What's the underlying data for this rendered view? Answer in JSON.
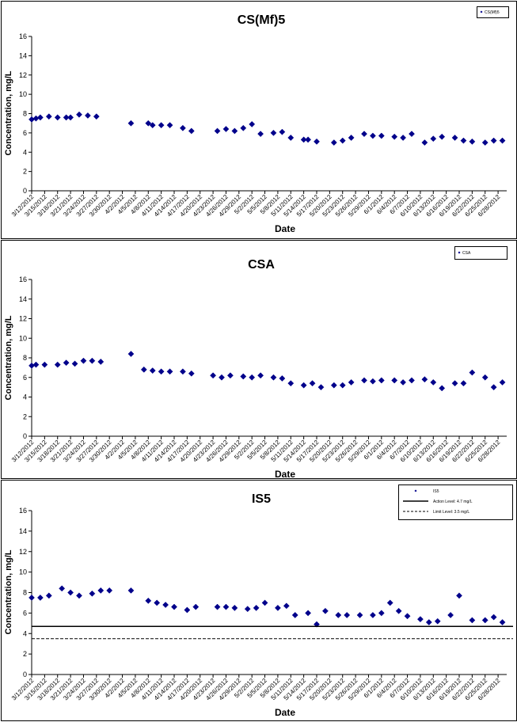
{
  "chart_data": [
    {
      "type": "scatter",
      "title": "CS(Mf)5",
      "xlabel": "Date",
      "ylabel": "Concentration, mg/L",
      "ylim": [
        0,
        16
      ],
      "yticks": [
        0,
        2,
        4,
        6,
        8,
        10,
        12,
        14,
        16
      ],
      "xlim": [
        "3/12/2012",
        "6/30/2012"
      ],
      "xtick_labels": [
        "3/12/2012",
        "3/15/2012",
        "3/18/2012",
        "3/21/2012",
        "3/24/2012",
        "3/27/2012",
        "3/30/2012",
        "4/2/2012",
        "4/5/2012",
        "4/8/2012",
        "4/11/2012",
        "4/14/2012",
        "4/17/2012",
        "4/20/2012",
        "4/23/2012",
        "4/26/2012",
        "4/29/2012",
        "5/2/2012",
        "5/5/2012",
        "5/8/2012",
        "5/11/2012",
        "5/14/2012",
        "5/17/2012",
        "5/20/2012",
        "5/23/2012",
        "5/26/2012",
        "5/29/2012",
        "6/1/2012",
        "6/4/2012",
        "6/7/2012",
        "6/10/2012",
        "6/13/2012",
        "6/16/2012",
        "6/19/2012",
        "6/22/2012",
        "6/25/2012",
        "6/28/2012"
      ],
      "legend": {
        "position": "top-right",
        "entries": [
          "CS(Mf)5"
        ]
      },
      "color": "#00008B",
      "series": [
        {
          "marker": "diamond",
          "x": [
            "3/12/2012",
            "3/13/2012",
            "3/14/2012",
            "3/16/2012",
            "3/18/2012",
            "3/20/2012",
            "3/21/2012",
            "3/23/2012",
            "3/25/2012",
            "3/27/2012",
            "4/4/2012",
            "4/8/2012",
            "4/9/2012",
            "4/11/2012",
            "4/13/2012",
            "4/16/2012",
            "4/18/2012",
            "4/24/2012",
            "4/26/2012",
            "4/28/2012",
            "4/30/2012",
            "5/2/2012",
            "5/4/2012",
            "5/7/2012",
            "5/9/2012",
            "5/11/2012",
            "5/14/2012",
            "5/15/2012",
            "5/17/2012",
            "5/21/2012",
            "5/23/2012",
            "5/25/2012",
            "5/28/2012",
            "5/30/2012",
            "6/1/2012",
            "6/4/2012",
            "6/6/2012",
            "6/8/2012",
            "6/11/2012",
            "6/13/2012",
            "6/15/2012",
            "6/18/2012",
            "6/20/2012",
            "6/22/2012",
            "6/25/2012",
            "6/27/2012",
            "6/29/2012"
          ],
          "y": [
            7.4,
            7.5,
            7.6,
            7.7,
            7.6,
            7.6,
            7.6,
            7.9,
            7.8,
            7.7,
            7.0,
            7.0,
            6.8,
            6.8,
            6.8,
            6.5,
            6.2,
            6.2,
            6.4,
            6.2,
            6.5,
            6.9,
            5.9,
            6.0,
            6.1,
            5.5,
            5.3,
            5.3,
            5.1,
            5.0,
            5.2,
            5.5,
            5.9,
            5.7,
            5.7,
            5.6,
            5.5,
            5.9,
            5.0,
            5.4,
            5.6,
            5.5,
            5.2,
            5.1,
            5.0,
            5.2,
            5.2
          ]
        }
      ]
    },
    {
      "type": "scatter",
      "title": "CSA",
      "xlabel": "Date",
      "ylabel": "Concentration, mg/L",
      "ylim": [
        0,
        16
      ],
      "yticks": [
        0,
        2,
        4,
        6,
        8,
        10,
        12,
        14,
        16
      ],
      "xlim": [
        "3/12/2012",
        "6/30/2012"
      ],
      "xtick_labels": [
        "3/12/2012",
        "3/15/2012",
        "3/18/2012",
        "3/21/2012",
        "3/24/2012",
        "3/27/2012",
        "3/30/2012",
        "4/2/2012",
        "4/5/2012",
        "4/8/2012",
        "4/11/2012",
        "4/14/2012",
        "4/17/2012",
        "4/20/2012",
        "4/23/2012",
        "4/26/2012",
        "4/29/2012",
        "5/2/2012",
        "5/5/2012",
        "5/8/2012",
        "5/11/2012",
        "5/14/2012",
        "5/17/2012",
        "5/20/2012",
        "5/23/2012",
        "5/26/2012",
        "5/29/2012",
        "6/1/2012",
        "6/4/2012",
        "6/7/2012",
        "6/10/2012",
        "6/13/2012",
        "6/16/2012",
        "6/19/2012",
        "6/22/2012",
        "6/25/2012",
        "6/28/2012"
      ],
      "legend": {
        "position": "top-right",
        "entries": [
          "CSA"
        ]
      },
      "color": "#00008B",
      "series": [
        {
          "marker": "diamond",
          "x": [
            "3/12/2012",
            "3/13/2012",
            "3/15/2012",
            "3/18/2012",
            "3/20/2012",
            "3/22/2012",
            "3/24/2012",
            "3/26/2012",
            "3/28/2012",
            "4/4/2012",
            "4/7/2012",
            "4/9/2012",
            "4/11/2012",
            "4/13/2012",
            "4/16/2012",
            "4/18/2012",
            "4/23/2012",
            "4/25/2012",
            "4/27/2012",
            "4/30/2012",
            "5/2/2012",
            "5/4/2012",
            "5/7/2012",
            "5/9/2012",
            "5/11/2012",
            "5/14/2012",
            "5/16/2012",
            "5/18/2012",
            "5/21/2012",
            "5/23/2012",
            "5/25/2012",
            "5/28/2012",
            "5/30/2012",
            "6/1/2012",
            "6/4/2012",
            "6/6/2012",
            "6/8/2012",
            "6/11/2012",
            "6/13/2012",
            "6/15/2012",
            "6/18/2012",
            "6/20/2012",
            "6/22/2012",
            "6/25/2012",
            "6/27/2012",
            "6/29/2012"
          ],
          "y": [
            7.2,
            7.3,
            7.3,
            7.3,
            7.5,
            7.4,
            7.7,
            7.7,
            7.6,
            8.4,
            6.8,
            6.7,
            6.6,
            6.6,
            6.6,
            6.4,
            6.2,
            6.0,
            6.2,
            6.1,
            6.0,
            6.2,
            6.0,
            5.9,
            5.4,
            5.2,
            5.4,
            5.0,
            5.2,
            5.2,
            5.5,
            5.7,
            5.6,
            5.7,
            5.7,
            5.5,
            5.7,
            5.8,
            5.5,
            4.9,
            5.4,
            5.4,
            6.5,
            6.0,
            5.0,
            5.5
          ]
        }
      ]
    },
    {
      "type": "scatter",
      "title": "IS5",
      "xlabel": "Date",
      "ylabel": "Concentration, mg/L",
      "ylim": [
        0,
        16
      ],
      "yticks": [
        0,
        2,
        4,
        6,
        8,
        10,
        12,
        14,
        16
      ],
      "xlim": [
        "3/12/2012",
        "6/30/2012"
      ],
      "xtick_labels": [
        "3/12/2012",
        "3/15/2012",
        "3/18/2012",
        "3/21/2012",
        "3/24/2012",
        "3/27/2012",
        "3/30/2012",
        "4/2/2012",
        "4/5/2012",
        "4/8/2012",
        "4/11/2012",
        "4/14/2012",
        "4/17/2012",
        "4/20/2012",
        "4/23/2012",
        "4/26/2012",
        "4/29/2012",
        "5/2/2012",
        "5/5/2012",
        "5/8/2012",
        "5/11/2012",
        "5/14/2012",
        "5/17/2012",
        "5/20/2012",
        "5/23/2012",
        "5/26/2012",
        "5/29/2012",
        "6/1/2012",
        "6/4/2012",
        "6/7/2012",
        "6/10/2012",
        "6/13/2012",
        "6/16/2012",
        "6/19/2012",
        "6/22/2012",
        "6/25/2012",
        "6/28/2012"
      ],
      "legend": {
        "position": "top-right",
        "entries": [
          "IS5",
          "Action Level: 4.7 mg/L",
          "Limit Level: 3.5 mg/L"
        ]
      },
      "color": "#00008B",
      "series": [
        {
          "name": "IS5",
          "marker": "diamond",
          "x": [
            "3/12/2012",
            "3/14/2012",
            "3/16/2012",
            "3/19/2012",
            "3/21/2012",
            "3/23/2012",
            "3/26/2012",
            "3/28/2012",
            "3/30/2012",
            "4/4/2012",
            "4/8/2012",
            "4/10/2012",
            "4/12/2012",
            "4/14/2012",
            "4/17/2012",
            "4/19/2012",
            "4/24/2012",
            "4/26/2012",
            "4/28/2012",
            "5/1/2012",
            "5/3/2012",
            "5/5/2012",
            "5/8/2012",
            "5/10/2012",
            "5/12/2012",
            "5/15/2012",
            "5/17/2012",
            "5/19/2012",
            "5/22/2012",
            "5/24/2012",
            "5/27/2012",
            "5/30/2012",
            "6/1/2012",
            "6/3/2012",
            "6/5/2012",
            "6/7/2012",
            "6/10/2012",
            "6/12/2012",
            "6/14/2012",
            "6/17/2012",
            "6/19/2012",
            "6/22/2012",
            "6/25/2012",
            "6/27/2012",
            "6/29/2012"
          ],
          "y": [
            7.5,
            7.5,
            7.7,
            8.4,
            8.0,
            7.7,
            7.9,
            8.2,
            8.2,
            8.2,
            7.2,
            7.0,
            6.8,
            6.6,
            6.3,
            6.6,
            6.6,
            6.6,
            6.5,
            6.4,
            6.5,
            7.0,
            6.5,
            6.7,
            5.8,
            6.0,
            4.9,
            6.2,
            5.8,
            5.8,
            5.8,
            5.8,
            6.0,
            7.0,
            6.2,
            5.7,
            5.4,
            5.1,
            5.2,
            5.8,
            7.7,
            5.3,
            5.3,
            5.6,
            5.1
          ]
        },
        {
          "name": "Action Level: 4.7 mg/L",
          "type": "hline",
          "y": 4.7,
          "style": "solid"
        },
        {
          "name": "Limit Level: 3.5 mg/L",
          "type": "hline",
          "y": 3.5,
          "style": "dashed"
        }
      ]
    }
  ]
}
